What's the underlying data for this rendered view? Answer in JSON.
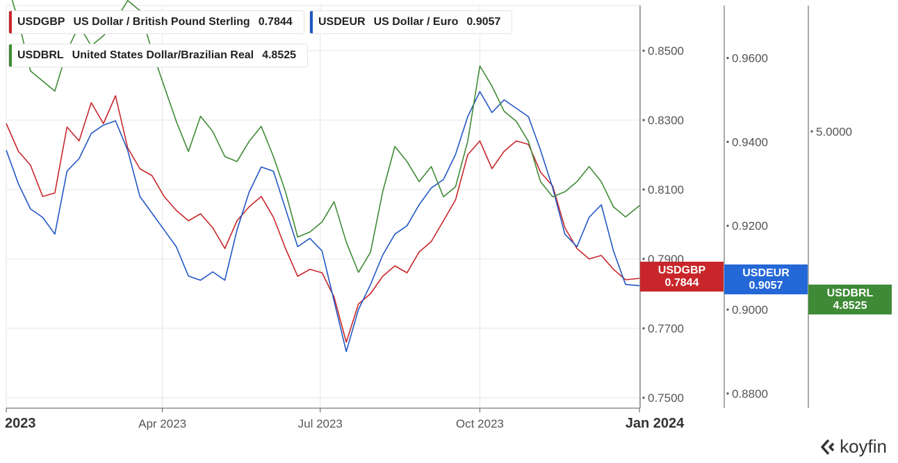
{
  "chart_data": {
    "type": "line",
    "x_start": "2023-01-01",
    "x_end": "2024-01-01",
    "x_ticks": [
      {
        "date": "2023-01-01",
        "label": "2023",
        "bold": true
      },
      {
        "date": "2023-04-01",
        "label": "Apr 2023",
        "bold": false
      },
      {
        "date": "2023-07-01",
        "label": "Jul 2023",
        "bold": false
      },
      {
        "date": "2023-10-01",
        "label": "Oct 2023",
        "bold": false
      },
      {
        "date": "2024-01-01",
        "label": "Jan 2024",
        "bold": true
      }
    ],
    "axes": [
      {
        "id": "gbp",
        "ylim": [
          0.747,
          0.863
        ],
        "ticks": [
          "0.7500",
          "0.7700",
          "0.7900",
          "0.8100",
          "0.8300",
          "0.8500"
        ]
      },
      {
        "id": "eur",
        "ylim": [
          0.8765,
          0.9725
        ],
        "ticks": [
          "0.8800",
          "0.9000",
          "0.9200",
          "0.9400",
          "0.9600"
        ]
      },
      {
        "id": "brl",
        "ylim": [
          4.45,
          5.25
        ],
        "ticks": [
          "5.0000"
        ]
      }
    ],
    "series": [
      {
        "name": "USDGBP",
        "description": "US Dollar / British Pound Sterling",
        "last": "0.7844",
        "color": "#c8262a",
        "axis": "gbp",
        "points": [
          [
            "2023-01-01",
            0.829
          ],
          [
            "2023-01-08",
            0.821
          ],
          [
            "2023-01-15",
            0.817
          ],
          [
            "2023-01-22",
            0.808
          ],
          [
            "2023-01-29",
            0.809
          ],
          [
            "2023-02-05",
            0.828
          ],
          [
            "2023-02-12",
            0.824
          ],
          [
            "2023-02-19",
            0.835
          ],
          [
            "2023-02-26",
            0.829
          ],
          [
            "2023-03-05",
            0.837
          ],
          [
            "2023-03-12",
            0.822
          ],
          [
            "2023-03-19",
            0.816
          ],
          [
            "2023-03-26",
            0.814
          ],
          [
            "2023-04-02",
            0.808
          ],
          [
            "2023-04-09",
            0.804
          ],
          [
            "2023-04-16",
            0.801
          ],
          [
            "2023-04-23",
            0.803
          ],
          [
            "2023-04-30",
            0.799
          ],
          [
            "2023-05-07",
            0.793
          ],
          [
            "2023-05-14",
            0.801
          ],
          [
            "2023-05-21",
            0.805
          ],
          [
            "2023-05-28",
            0.808
          ],
          [
            "2023-06-04",
            0.802
          ],
          [
            "2023-06-11",
            0.793
          ],
          [
            "2023-06-18",
            0.785
          ],
          [
            "2023-06-25",
            0.787
          ],
          [
            "2023-07-02",
            0.786
          ],
          [
            "2023-07-09",
            0.779
          ],
          [
            "2023-07-16",
            0.766
          ],
          [
            "2023-07-23",
            0.777
          ],
          [
            "2023-07-30",
            0.78
          ],
          [
            "2023-08-06",
            0.785
          ],
          [
            "2023-08-13",
            0.788
          ],
          [
            "2023-08-20",
            0.786
          ],
          [
            "2023-08-27",
            0.792
          ],
          [
            "2023-09-03",
            0.795
          ],
          [
            "2023-09-10",
            0.801
          ],
          [
            "2023-09-17",
            0.807
          ],
          [
            "2023-09-24",
            0.82
          ],
          [
            "2023-10-01",
            0.824
          ],
          [
            "2023-10-08",
            0.816
          ],
          [
            "2023-10-15",
            0.821
          ],
          [
            "2023-10-22",
            0.824
          ],
          [
            "2023-10-29",
            0.823
          ],
          [
            "2023-11-05",
            0.815
          ],
          [
            "2023-11-12",
            0.811
          ],
          [
            "2023-11-19",
            0.799
          ],
          [
            "2023-11-26",
            0.793
          ],
          [
            "2023-12-03",
            0.79
          ],
          [
            "2023-12-10",
            0.791
          ],
          [
            "2023-12-17",
            0.787
          ],
          [
            "2023-12-24",
            0.784
          ],
          [
            "2024-01-01",
            0.7844
          ]
        ]
      },
      {
        "name": "USDEUR",
        "description": "US Dollar / Euro",
        "last": "0.9057",
        "color": "#2157c4",
        "axis": "eur",
        "points": [
          [
            "2023-01-01",
            0.938
          ],
          [
            "2023-01-08",
            0.93
          ],
          [
            "2023-01-15",
            0.924
          ],
          [
            "2023-01-22",
            0.922
          ],
          [
            "2023-01-29",
            0.918
          ],
          [
            "2023-02-05",
            0.933
          ],
          [
            "2023-02-12",
            0.936
          ],
          [
            "2023-02-19",
            0.942
          ],
          [
            "2023-02-26",
            0.944
          ],
          [
            "2023-03-05",
            0.945
          ],
          [
            "2023-03-12",
            0.938
          ],
          [
            "2023-03-19",
            0.927
          ],
          [
            "2023-03-26",
            0.923
          ],
          [
            "2023-04-02",
            0.919
          ],
          [
            "2023-04-09",
            0.915
          ],
          [
            "2023-04-16",
            0.908
          ],
          [
            "2023-04-23",
            0.907
          ],
          [
            "2023-04-30",
            0.909
          ],
          [
            "2023-05-07",
            0.907
          ],
          [
            "2023-05-14",
            0.919
          ],
          [
            "2023-05-21",
            0.928
          ],
          [
            "2023-05-28",
            0.934
          ],
          [
            "2023-06-04",
            0.933
          ],
          [
            "2023-06-11",
            0.924
          ],
          [
            "2023-06-18",
            0.915
          ],
          [
            "2023-06-25",
            0.917
          ],
          [
            "2023-07-02",
            0.914
          ],
          [
            "2023-07-09",
            0.902
          ],
          [
            "2023-07-16",
            0.89
          ],
          [
            "2023-07-23",
            0.9
          ],
          [
            "2023-07-30",
            0.906
          ],
          [
            "2023-08-06",
            0.913
          ],
          [
            "2023-08-13",
            0.918
          ],
          [
            "2023-08-20",
            0.92
          ],
          [
            "2023-08-27",
            0.925
          ],
          [
            "2023-09-03",
            0.929
          ],
          [
            "2023-09-10",
            0.931
          ],
          [
            "2023-09-17",
            0.937
          ],
          [
            "2023-09-24",
            0.946
          ],
          [
            "2023-10-01",
            0.952
          ],
          [
            "2023-10-08",
            0.947
          ],
          [
            "2023-10-15",
            0.95
          ],
          [
            "2023-10-22",
            0.948
          ],
          [
            "2023-10-29",
            0.946
          ],
          [
            "2023-11-05",
            0.938
          ],
          [
            "2023-11-12",
            0.929
          ],
          [
            "2023-11-19",
            0.918
          ],
          [
            "2023-11-26",
            0.915
          ],
          [
            "2023-12-03",
            0.922
          ],
          [
            "2023-12-10",
            0.925
          ],
          [
            "2023-12-17",
            0.914
          ],
          [
            "2023-12-24",
            0.906
          ],
          [
            "2024-01-01",
            0.9057
          ]
        ]
      },
      {
        "name": "USDBRL",
        "description": "United States Dollar/Brazilian Real",
        "last": "4.8525",
        "color": "#3f8a36",
        "axis": "brl",
        "points": [
          [
            "2023-01-01",
            5.3
          ],
          [
            "2023-01-08",
            5.22
          ],
          [
            "2023-01-15",
            5.12
          ],
          [
            "2023-01-22",
            5.1
          ],
          [
            "2023-01-29",
            5.08
          ],
          [
            "2023-02-05",
            5.16
          ],
          [
            "2023-02-12",
            5.21
          ],
          [
            "2023-02-19",
            5.17
          ],
          [
            "2023-02-26",
            5.19
          ],
          [
            "2023-03-05",
            5.22
          ],
          [
            "2023-03-12",
            5.26
          ],
          [
            "2023-03-19",
            5.24
          ],
          [
            "2023-03-26",
            5.16
          ],
          [
            "2023-04-02",
            5.09
          ],
          [
            "2023-04-09",
            5.02
          ],
          [
            "2023-04-16",
            4.96
          ],
          [
            "2023-04-23",
            5.03
          ],
          [
            "2023-04-30",
            5.0
          ],
          [
            "2023-05-07",
            4.95
          ],
          [
            "2023-05-14",
            4.94
          ],
          [
            "2023-05-21",
            4.98
          ],
          [
            "2023-05-28",
            5.01
          ],
          [
            "2023-06-04",
            4.95
          ],
          [
            "2023-06-11",
            4.88
          ],
          [
            "2023-06-18",
            4.79
          ],
          [
            "2023-06-25",
            4.8
          ],
          [
            "2023-07-02",
            4.82
          ],
          [
            "2023-07-09",
            4.86
          ],
          [
            "2023-07-16",
            4.78
          ],
          [
            "2023-07-23",
            4.72
          ],
          [
            "2023-07-30",
            4.76
          ],
          [
            "2023-08-06",
            4.88
          ],
          [
            "2023-08-13",
            4.97
          ],
          [
            "2023-08-20",
            4.94
          ],
          [
            "2023-08-27",
            4.9
          ],
          [
            "2023-09-03",
            4.93
          ],
          [
            "2023-09-10",
            4.87
          ],
          [
            "2023-09-17",
            4.89
          ],
          [
            "2023-09-24",
            4.98
          ],
          [
            "2023-10-01",
            5.13
          ],
          [
            "2023-10-08",
            5.09
          ],
          [
            "2023-10-15",
            5.04
          ],
          [
            "2023-10-22",
            5.02
          ],
          [
            "2023-10-29",
            4.98
          ],
          [
            "2023-11-05",
            4.9
          ],
          [
            "2023-11-12",
            4.87
          ],
          [
            "2023-11-19",
            4.88
          ],
          [
            "2023-11-26",
            4.9
          ],
          [
            "2023-12-03",
            4.93
          ],
          [
            "2023-12-10",
            4.9
          ],
          [
            "2023-12-17",
            4.85
          ],
          [
            "2023-12-24",
            4.83
          ],
          [
            "2024-01-01",
            4.8525
          ]
        ]
      }
    ],
    "grid": true,
    "legend_placement": "top-left"
  },
  "branding": {
    "text": "koyfin",
    "icon": "koyfin-logo-icon"
  }
}
